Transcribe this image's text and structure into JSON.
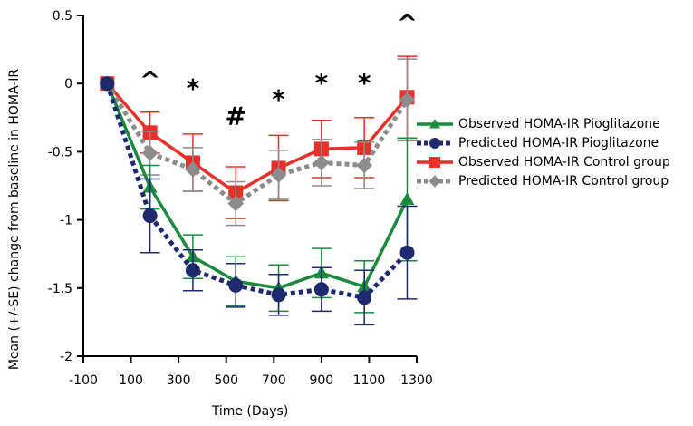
{
  "chart_data": {
    "type": "line",
    "title": "",
    "xlabel": "Time (Days)",
    "ylabel": "Mean (+/-SE) change from baseline in HOMA-IR",
    "xlim": [
      -100,
      1300
    ],
    "ylim": [
      -2,
      0.5
    ],
    "xticks": [
      "-100",
      "100",
      "300",
      "500",
      "700",
      "900",
      "1100",
      "1300"
    ],
    "yticks": [
      "0.5",
      "0",
      "-0.5",
      "-1",
      "-1.5",
      "-2"
    ],
    "grid": false,
    "legend_position": "right",
    "x": [
      0,
      180,
      360,
      540,
      720,
      900,
      1080,
      1260
    ],
    "series": [
      {
        "name": "Observed HOMA-IR Pioglitazone",
        "color": "#1a8a3c",
        "marker": "triangle",
        "dash": "solid",
        "values": [
          0,
          -0.76,
          -1.27,
          -1.45,
          -1.5,
          -1.39,
          -1.49,
          -0.85
        ],
        "err": [
          0,
          0.16,
          0.16,
          0.18,
          0.17,
          0.18,
          0.19,
          0.45
        ]
      },
      {
        "name": "Predicted HOMA-IR Pioglitazone",
        "color": "#1f2a6e",
        "marker": "circle",
        "dash": "dotted",
        "values": [
          0,
          -0.97,
          -1.37,
          -1.48,
          -1.55,
          -1.51,
          -1.57,
          -1.24
        ],
        "err": [
          0,
          0.27,
          0.15,
          0.16,
          0.15,
          0.16,
          0.2,
          0.34
        ]
      },
      {
        "name": "Observed HOMA-IR Control group",
        "color": "#e8302a",
        "marker": "square",
        "dash": "solid",
        "values": [
          0,
          -0.36,
          -0.58,
          -0.8,
          -0.62,
          -0.48,
          -0.47,
          -0.1
        ],
        "err": [
          0,
          0.15,
          0.21,
          0.19,
          0.24,
          0.21,
          0.22,
          0.3
        ]
      },
      {
        "name": "Predicted HOMA-IR Control group",
        "color": "#8c8c8c",
        "marker": "diamond",
        "dash": "dotted",
        "values": [
          0,
          -0.51,
          -0.63,
          -0.88,
          -0.67,
          -0.58,
          -0.6,
          -0.12
        ],
        "err": [
          0,
          0.16,
          0.16,
          0.16,
          0.18,
          0.17,
          0.17,
          0.3
        ]
      }
    ],
    "annotations": [
      {
        "text": "^",
        "x": 180,
        "y": 0.08
      },
      {
        "text": "*",
        "x": 360,
        "y": 0.02
      },
      {
        "text": "#",
        "x": 540,
        "y": -0.18
      },
      {
        "text": "*",
        "x": 720,
        "y": -0.06
      },
      {
        "text": "*",
        "x": 900,
        "y": 0.06
      },
      {
        "text": "*",
        "x": 1080,
        "y": 0.06
      },
      {
        "text": "^",
        "x": 1260,
        "y": 0.5
      }
    ]
  },
  "legend": {
    "items": [
      {
        "label": "Observed HOMA-IR Pioglitazone"
      },
      {
        "label": "Predicted HOMA-IR Pioglitazone"
      },
      {
        "label": "Observed HOMA-IR Control group"
      },
      {
        "label": "Predicted HOMA-IR Control group"
      }
    ]
  }
}
